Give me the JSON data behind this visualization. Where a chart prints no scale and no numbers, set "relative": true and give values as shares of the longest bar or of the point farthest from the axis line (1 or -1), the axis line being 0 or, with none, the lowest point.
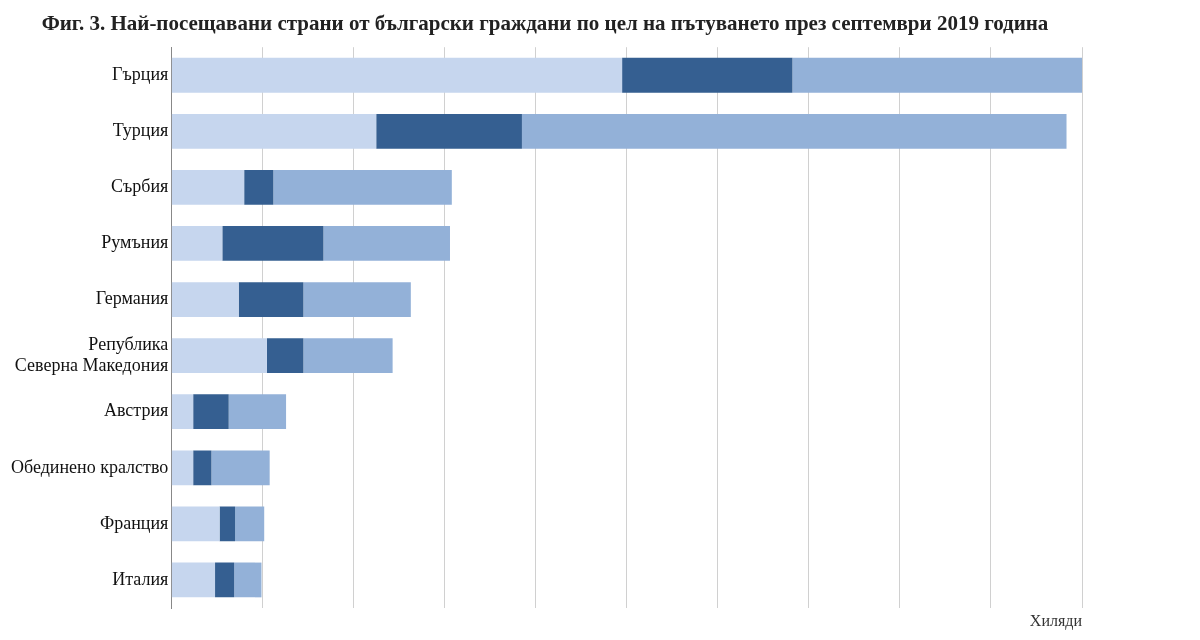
{
  "chart_data": {
    "type": "bar",
    "orientation": "horizontal",
    "stacked": true,
    "relative": true,
    "grid": "x",
    "legend": false,
    "title": "Фиг. 3. Най-посещавани страни от български граждани по цел на пътуването през септември 2019 година",
    "xlabel": "Хиляди",
    "categories": [
      "Гърция",
      "Турция",
      "Сърбия",
      "Румъния",
      "Германия",
      "Република Северна Македония",
      "Австрия",
      "Обединено кралство",
      "Франция",
      "Италия"
    ],
    "series": [
      {
        "color": "#c6d6ee",
        "values": [
          0.495,
          0.225,
          0.08,
          0.056,
          0.074,
          0.105,
          0.024,
          0.024,
          0.053,
          0.048
        ]
      },
      {
        "color": "#355f91",
        "values": [
          0.187,
          0.16,
          0.032,
          0.111,
          0.071,
          0.04,
          0.039,
          0.02,
          0.017,
          0.021
        ]
      },
      {
        "color": "#93b1d8",
        "values": [
          0.318,
          0.598,
          0.196,
          0.139,
          0.118,
          0.098,
          0.063,
          0.064,
          0.032,
          0.03
        ]
      }
    ]
  }
}
